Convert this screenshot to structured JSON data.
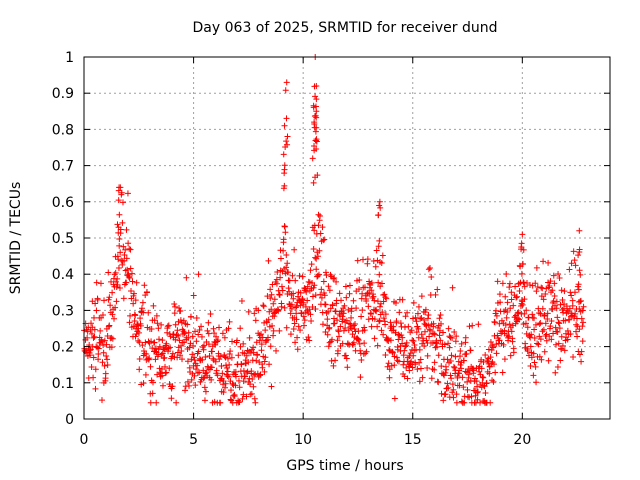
{
  "chart_data": {
    "type": "scatter",
    "title": "Day 063 of 2025, SRMTID for receiver dund",
    "xlabel": "GPS time / hours",
    "ylabel": "SRMTID / TECUs",
    "xlim": [
      0,
      24
    ],
    "ylim": [
      0,
      1
    ],
    "x_ticks": [
      {
        "v": 0,
        "label": "0"
      },
      {
        "v": 5,
        "label": "5"
      },
      {
        "v": 10,
        "label": "10"
      },
      {
        "v": 15,
        "label": "15"
      },
      {
        "v": 20,
        "label": "20"
      }
    ],
    "y_ticks": [
      {
        "v": 0,
        "label": "0"
      },
      {
        "v": 0.1,
        "label": "0.1"
      },
      {
        "v": 0.2,
        "label": "0.2"
      },
      {
        "v": 0.3,
        "label": "0.3"
      },
      {
        "v": 0.4,
        "label": "0.4"
      },
      {
        "v": 0.5,
        "label": "0.5"
      },
      {
        "v": 0.6,
        "label": "0.6"
      },
      {
        "v": 0.7,
        "label": "0.7"
      },
      {
        "v": 0.8,
        "label": "0.8"
      },
      {
        "v": 0.9,
        "label": "0.9"
      },
      {
        "v": 1,
        "label": "1"
      }
    ],
    "grid": true,
    "marker": "plus",
    "color": "#ff0000",
    "series": [
      {
        "name": "SRMTID",
        "data_range_hours": [
          0,
          22.8
        ],
        "profile": [
          {
            "x": 0.0,
            "y": 0.2
          },
          {
            "x": 0.5,
            "y": 0.21
          },
          {
            "x": 1.0,
            "y": 0.22
          },
          {
            "x": 1.4,
            "y": 0.3
          },
          {
            "x": 1.7,
            "y": 0.52
          },
          {
            "x": 2.0,
            "y": 0.38
          },
          {
            "x": 2.5,
            "y": 0.24
          },
          {
            "x": 3.0,
            "y": 0.2
          },
          {
            "x": 4.0,
            "y": 0.19
          },
          {
            "x": 4.7,
            "y": 0.22
          },
          {
            "x": 5.5,
            "y": 0.15
          },
          {
            "x": 6.5,
            "y": 0.16
          },
          {
            "x": 7.5,
            "y": 0.14
          },
          {
            "x": 8.3,
            "y": 0.22
          },
          {
            "x": 8.8,
            "y": 0.3
          },
          {
            "x": 9.2,
            "y": 0.42
          },
          {
            "x": 9.6,
            "y": 0.3
          },
          {
            "x": 10.2,
            "y": 0.3
          },
          {
            "x": 10.7,
            "y": 0.48
          },
          {
            "x": 11.2,
            "y": 0.3
          },
          {
            "x": 12.0,
            "y": 0.24
          },
          {
            "x": 12.8,
            "y": 0.3
          },
          {
            "x": 13.5,
            "y": 0.34
          },
          {
            "x": 14.0,
            "y": 0.2
          },
          {
            "x": 15.0,
            "y": 0.22
          },
          {
            "x": 15.8,
            "y": 0.24
          },
          {
            "x": 16.5,
            "y": 0.15
          },
          {
            "x": 17.5,
            "y": 0.12
          },
          {
            "x": 18.4,
            "y": 0.11
          },
          {
            "x": 18.8,
            "y": 0.24
          },
          {
            "x": 19.5,
            "y": 0.28
          },
          {
            "x": 20.0,
            "y": 0.34
          },
          {
            "x": 20.5,
            "y": 0.22
          },
          {
            "x": 21.2,
            "y": 0.3
          },
          {
            "x": 21.8,
            "y": 0.24
          },
          {
            "x": 22.4,
            "y": 0.32
          },
          {
            "x": 22.8,
            "y": 0.22
          }
        ],
        "notable_peaks": [
          {
            "x": 1.6,
            "y": 0.64
          },
          {
            "x": 9.25,
            "y": 0.93
          },
          {
            "x": 9.15,
            "y": 0.81
          },
          {
            "x": 10.55,
            "y": 1.0
          },
          {
            "x": 10.6,
            "y": 0.92
          },
          {
            "x": 10.6,
            "y": 0.85
          },
          {
            "x": 10.5,
            "y": 0.82
          },
          {
            "x": 13.5,
            "y": 0.6
          },
          {
            "x": 20.0,
            "y": 0.51
          },
          {
            "x": 22.6,
            "y": 0.52
          }
        ]
      }
    ]
  }
}
